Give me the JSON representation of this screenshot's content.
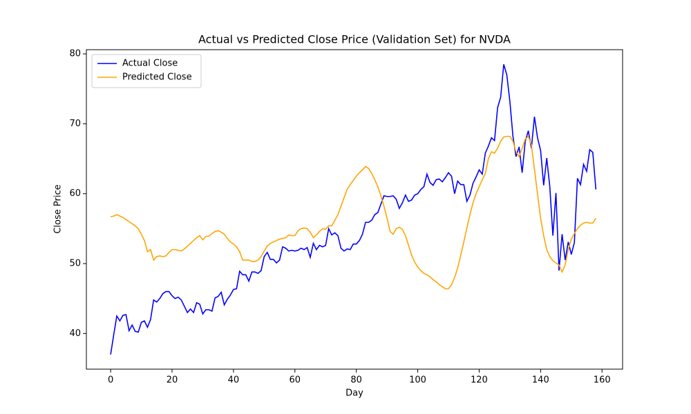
{
  "chart_data": {
    "type": "line",
    "title": "Actual vs Predicted Close Price (Validation Set) for NVDA",
    "xlabel": "Day",
    "ylabel": "Close Price",
    "x": [
      0,
      1,
      2,
      3,
      4,
      5,
      6,
      7,
      8,
      9,
      10,
      11,
      12,
      13,
      14,
      15,
      16,
      17,
      18,
      19,
      20,
      21,
      22,
      23,
      24,
      25,
      26,
      27,
      28,
      29,
      30,
      31,
      32,
      33,
      34,
      35,
      36,
      37,
      38,
      39,
      40,
      41,
      42,
      43,
      44,
      45,
      46,
      47,
      48,
      49,
      50,
      51,
      52,
      53,
      54,
      55,
      56,
      57,
      58,
      59,
      60,
      61,
      62,
      63,
      64,
      65,
      66,
      67,
      68,
      69,
      70,
      71,
      72,
      73,
      74,
      75,
      76,
      77,
      78,
      79,
      80,
      81,
      82,
      83,
      84,
      85,
      86,
      87,
      88,
      89,
      90,
      91,
      92,
      93,
      94,
      95,
      96,
      97,
      98,
      99,
      100,
      101,
      102,
      103,
      104,
      105,
      106,
      107,
      108,
      109,
      110,
      111,
      112,
      113,
      114,
      115,
      116,
      117,
      118,
      119,
      120,
      121,
      122,
      123,
      124,
      125,
      126,
      127,
      128,
      129,
      130,
      131,
      132,
      133,
      134,
      135,
      136,
      137,
      138,
      139,
      140,
      141,
      142,
      143,
      144,
      145,
      146,
      147,
      148,
      149,
      150,
      151,
      152,
      153,
      154,
      155,
      156,
      157,
      158
    ],
    "series": [
      {
        "name": "Actual Close",
        "color": "#0000ff",
        "values": [
          37.0,
          39.8,
          42.5,
          41.8,
          42.6,
          42.7,
          40.4,
          41.2,
          40.3,
          40.2,
          41.6,
          41.8,
          40.9,
          42.0,
          44.8,
          44.5,
          45.0,
          45.7,
          46.0,
          46.0,
          45.4,
          45.0,
          45.2,
          44.8,
          43.9,
          43.0,
          43.5,
          43.0,
          44.4,
          44.2,
          42.8,
          43.4,
          43.4,
          43.2,
          45.1,
          45.3,
          45.9,
          44.1,
          44.9,
          45.5,
          46.3,
          46.4,
          48.9,
          48.4,
          48.4,
          47.5,
          48.8,
          48.8,
          48.6,
          49.0,
          51.0,
          51.6,
          50.6,
          50.6,
          50.1,
          50.5,
          52.4,
          52.2,
          51.8,
          51.9,
          51.8,
          51.9,
          52.2,
          52.0,
          52.3,
          50.9,
          52.9,
          52.0,
          52.6,
          52.4,
          52.6,
          55.0,
          54.1,
          54.4,
          54.0,
          52.2,
          51.8,
          52.1,
          52.0,
          52.8,
          52.8,
          53.3,
          54.2,
          55.9,
          55.9,
          56.2,
          57.0,
          57.3,
          58.5,
          59.7,
          59.6,
          59.6,
          59.7,
          59.2,
          57.9,
          58.7,
          59.8,
          58.9,
          59.1,
          59.8,
          60.0,
          60.6,
          61.0,
          62.8,
          61.6,
          61.2,
          62.0,
          62.1,
          61.7,
          62.3,
          63.0,
          62.5,
          60.0,
          61.8,
          61.3,
          61.3,
          58.9,
          59.8,
          61.5,
          62.4,
          63.4,
          62.8,
          65.8,
          66.8,
          68.0,
          67.6,
          72.3,
          73.8,
          78.5,
          77.0,
          73.2,
          68.2,
          65.3,
          66.7,
          63.0,
          67.5,
          69.0,
          66.5,
          71.0,
          68.0,
          66.2,
          61.2,
          65.1,
          61.0,
          54.0,
          60.1,
          49.0,
          54.2,
          50.5,
          53.1,
          51.3,
          53.0,
          62.2,
          61.3,
          64.2,
          63.2,
          66.3,
          65.9,
          60.6
        ]
      },
      {
        "name": "Predicted Close",
        "color": "#ffa500",
        "values": [
          56.7,
          56.8,
          57.0,
          56.8,
          56.6,
          56.3,
          56.0,
          55.7,
          55.4,
          55.0,
          54.2,
          53.3,
          51.7,
          52.0,
          50.5,
          51.0,
          51.1,
          51.0,
          51.1,
          51.6,
          52.0,
          52.0,
          51.9,
          51.8,
          52.1,
          52.5,
          52.9,
          53.3,
          53.7,
          54.0,
          53.4,
          53.9,
          53.9,
          54.3,
          54.6,
          54.7,
          54.5,
          54.2,
          53.6,
          53.1,
          52.8,
          52.4,
          51.7,
          50.5,
          50.5,
          50.5,
          50.3,
          50.3,
          50.5,
          51.0,
          51.8,
          52.5,
          52.9,
          53.1,
          53.3,
          53.5,
          53.6,
          53.7,
          54.1,
          54.0,
          54.0,
          54.7,
          55.0,
          55.1,
          55.0,
          54.5,
          53.7,
          54.1,
          54.6,
          55.0,
          54.9,
          55.4,
          55.4,
          56.2,
          57.0,
          58.2,
          59.4,
          60.6,
          61.3,
          61.9,
          62.5,
          63.0,
          63.4,
          63.9,
          63.6,
          62.9,
          62.0,
          61.0,
          59.7,
          58.2,
          56.5,
          54.6,
          54.2,
          55.0,
          55.2,
          54.9,
          54.0,
          52.6,
          51.2,
          50.2,
          49.5,
          49.0,
          48.6,
          48.4,
          48.1,
          47.7,
          47.4,
          47.0,
          46.7,
          46.4,
          46.4,
          47.0,
          48.0,
          49.4,
          51.2,
          53.1,
          55.1,
          57.0,
          58.7,
          60.0,
          61.0,
          62.0,
          62.9,
          65.0,
          66.0,
          65.8,
          66.5,
          67.5,
          68.1,
          68.2,
          68.2,
          67.5,
          66.0,
          65.3,
          66.5,
          67.8,
          68.2,
          67.0,
          63.5,
          60.0,
          56.5,
          54.0,
          52.0,
          51.0,
          50.4,
          50.1,
          49.8,
          48.8,
          49.8,
          52.0,
          53.5,
          54.3,
          55.0,
          55.5,
          55.8,
          55.9,
          55.8,
          55.8,
          56.5
        ]
      }
    ],
    "xlim": [
      -7.9,
      166.7
    ],
    "ylim": [
      34.9,
      80.6
    ],
    "xticks": [
      0,
      20,
      40,
      60,
      80,
      100,
      120,
      140,
      160
    ],
    "yticks": [
      40,
      50,
      60,
      70,
      80
    ],
    "legend": "upper left"
  }
}
